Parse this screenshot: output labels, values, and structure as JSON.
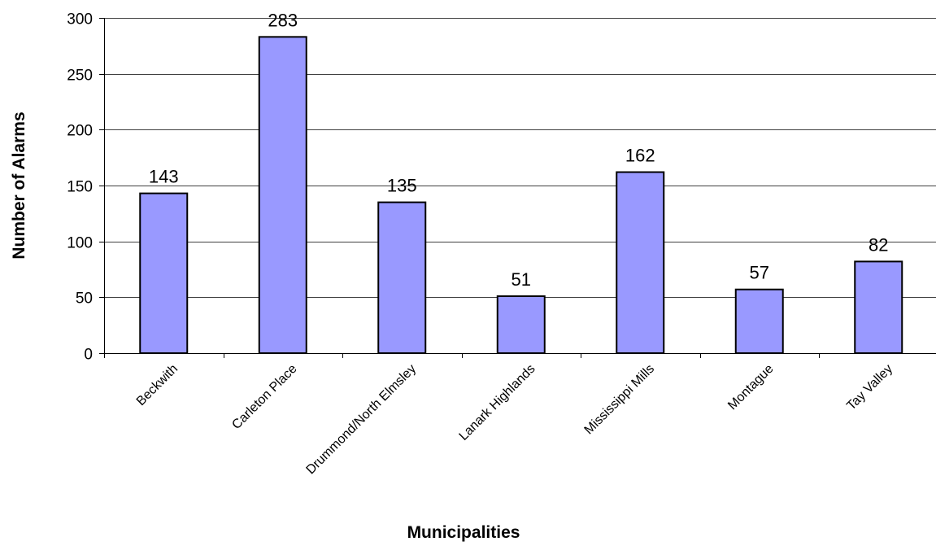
{
  "chart_data": {
    "type": "bar",
    "categories": [
      "Beckwith",
      "Carleton Place",
      "Drummond/North Elmsley",
      "Lanark Highlands",
      "Mississippi Mills",
      "Montague",
      "Tay Valley"
    ],
    "values": [
      143,
      283,
      135,
      51,
      162,
      57,
      82
    ],
    "data_labels": [
      "143",
      "283",
      "135",
      "51",
      "162",
      "57",
      "82"
    ],
    "xlabel": "Municipalities",
    "ylabel": "Number of Alarms",
    "ylim": [
      0,
      300
    ],
    "yticks": [
      0,
      50,
      100,
      150,
      200,
      250,
      300
    ],
    "grid": "horizontal",
    "legend": "none",
    "colors": {
      "bar": "#9999ff",
      "bar_outline": "#000000",
      "grid": "#000000"
    }
  }
}
